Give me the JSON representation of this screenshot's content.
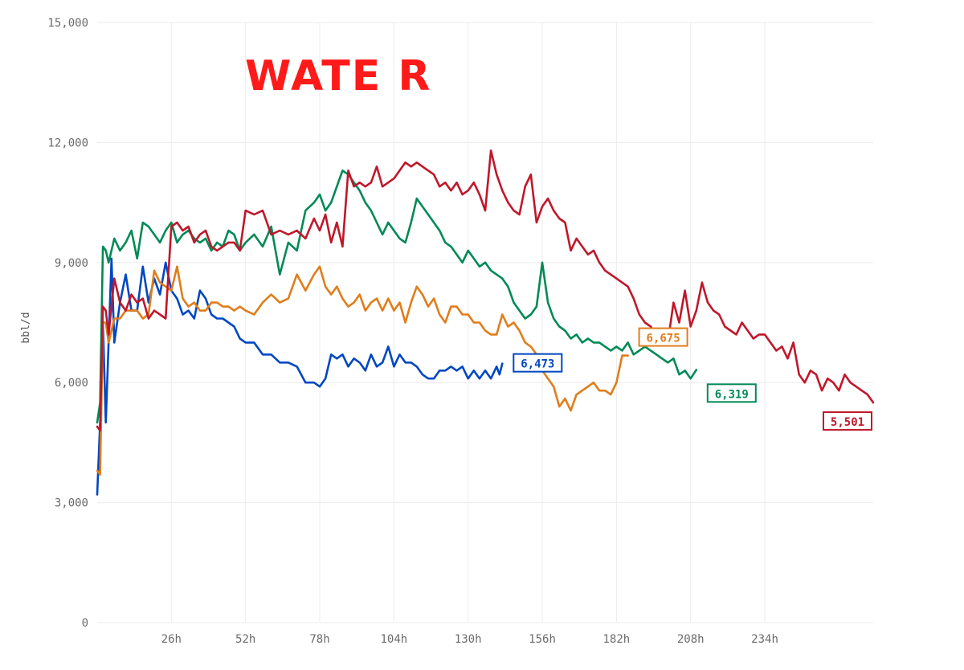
{
  "chart_data": {
    "type": "line",
    "title": "WATE R",
    "xlabel": "",
    "ylabel": "bbl/d",
    "ylim": [
      0,
      15000
    ],
    "xlim": [
      0,
      272
    ],
    "yticks": [
      0,
      3000,
      6000,
      9000,
      12000,
      15000
    ],
    "ytick_labels": [
      "0",
      "3,000",
      "6,000",
      "9,000",
      "12,000",
      "15,000"
    ],
    "xticks": [
      26,
      52,
      78,
      104,
      130,
      156,
      182,
      208,
      234
    ],
    "xtick_labels": [
      "26h",
      "52h",
      "78h",
      "104h",
      "130h",
      "156h",
      "182h",
      "208h",
      "234h"
    ],
    "grid": true,
    "legend": "none",
    "series": [
      {
        "color": "#0047c2",
        "end_label": "6,473",
        "x": [
          0,
          1,
          2,
          3,
          4,
          5,
          6,
          8,
          10,
          12,
          14,
          16,
          18,
          20,
          22,
          24,
          26,
          28,
          30,
          32,
          34,
          36,
          38,
          40,
          42,
          44,
          46,
          48,
          50,
          52,
          55,
          58,
          61,
          64,
          67,
          70,
          73,
          76,
          78,
          80,
          82,
          84,
          86,
          88,
          90,
          92,
          94,
          96,
          98,
          100,
          102,
          104,
          106,
          108,
          110,
          112,
          114,
          116,
          118,
          120,
          122,
          124,
          126,
          128,
          130,
          132,
          134,
          136,
          138,
          140,
          141,
          142
        ],
        "values": [
          3200,
          5000,
          7500,
          5000,
          7000,
          9100,
          7000,
          8000,
          8700,
          7800,
          7800,
          8900,
          8000,
          8600,
          8200,
          9000,
          8300,
          8100,
          7700,
          7800,
          7600,
          8300,
          8100,
          7700,
          7600,
          7600,
          7500,
          7400,
          7100,
          7000,
          7000,
          6700,
          6700,
          6500,
          6500,
          6400,
          6000,
          6000,
          5900,
          6100,
          6700,
          6600,
          6700,
          6400,
          6600,
          6500,
          6300,
          6700,
          6400,
          6500,
          6900,
          6400,
          6700,
          6500,
          6500,
          6400,
          6200,
          6100,
          6100,
          6300,
          6300,
          6400,
          6300,
          6400,
          6100,
          6300,
          6100,
          6300,
          6100,
          6400,
          6200,
          6473
        ]
      },
      {
        "color": "#e07d1b",
        "end_label": "6,675",
        "x": [
          0,
          1,
          2,
          3,
          4,
          6,
          8,
          10,
          12,
          14,
          16,
          18,
          20,
          22,
          24,
          26,
          28,
          30,
          32,
          34,
          36,
          38,
          40,
          42,
          44,
          46,
          48,
          50,
          52,
          55,
          58,
          61,
          64,
          67,
          70,
          73,
          76,
          78,
          80,
          82,
          84,
          86,
          88,
          90,
          92,
          94,
          96,
          98,
          100,
          102,
          104,
          106,
          108,
          110,
          112,
          114,
          116,
          118,
          120,
          122,
          124,
          126,
          128,
          130,
          132,
          134,
          136,
          138,
          140,
          142,
          144,
          146,
          148,
          150,
          152,
          154,
          156,
          158,
          160,
          162,
          164,
          166,
          168,
          170,
          172,
          174,
          176,
          178,
          180,
          182,
          184,
          186
        ],
        "values": [
          3800,
          3700,
          7500,
          7500,
          7000,
          7600,
          7600,
          7800,
          7800,
          7800,
          7600,
          7700,
          8800,
          8500,
          8400,
          8300,
          8900,
          8100,
          7900,
          8000,
          7800,
          7800,
          8000,
          8000,
          7900,
          7900,
          7800,
          7900,
          7800,
          7700,
          8000,
          8200,
          8000,
          8100,
          8700,
          8300,
          8700,
          8900,
          8400,
          8200,
          8400,
          8100,
          7900,
          8000,
          8200,
          7800,
          8000,
          8100,
          7800,
          8100,
          7800,
          8000,
          7500,
          8000,
          8400,
          8200,
          7900,
          8100,
          7700,
          7500,
          7900,
          7900,
          7700,
          7700,
          7500,
          7500,
          7300,
          7200,
          7200,
          7700,
          7400,
          7500,
          7300,
          7000,
          6900,
          6700,
          6300,
          6100,
          5900,
          5400,
          5600,
          5300,
          5700,
          5800,
          5900,
          6000,
          5800,
          5800,
          5700,
          6000,
          6675,
          6675
        ]
      },
      {
        "color": "#008a56",
        "end_label": "6,319",
        "x": [
          0,
          1,
          2,
          3,
          4,
          6,
          8,
          10,
          12,
          14,
          16,
          18,
          20,
          22,
          24,
          26,
          28,
          30,
          32,
          34,
          36,
          38,
          40,
          42,
          44,
          46,
          48,
          50,
          52,
          55,
          58,
          61,
          64,
          67,
          70,
          73,
          76,
          78,
          80,
          82,
          84,
          86,
          88,
          90,
          92,
          94,
          96,
          98,
          100,
          102,
          104,
          106,
          108,
          110,
          112,
          114,
          116,
          118,
          120,
          122,
          124,
          126,
          128,
          130,
          132,
          134,
          136,
          138,
          140,
          142,
          144,
          146,
          148,
          150,
          152,
          154,
          156,
          158,
          160,
          162,
          164,
          166,
          168,
          170,
          172,
          174,
          176,
          178,
          180,
          182,
          184,
          186,
          188,
          190,
          192,
          194,
          196,
          198,
          200,
          202,
          204,
          206,
          208,
          210
        ],
        "values": [
          5000,
          5500,
          9400,
          9300,
          9000,
          9600,
          9300,
          9500,
          9800,
          9100,
          10000,
          9900,
          9700,
          9500,
          9800,
          10000,
          9500,
          9700,
          9800,
          9600,
          9500,
          9600,
          9300,
          9500,
          9400,
          9800,
          9700,
          9300,
          9500,
          9700,
          9400,
          9900,
          8700,
          9500,
          9300,
          10300,
          10500,
          10700,
          10300,
          10500,
          10900,
          11300,
          11200,
          11000,
          10800,
          10500,
          10300,
          10000,
          9700,
          10000,
          9800,
          9600,
          9500,
          10000,
          10600,
          10400,
          10200,
          10000,
          9800,
          9500,
          9400,
          9200,
          9000,
          9300,
          9100,
          8900,
          9000,
          8800,
          8700,
          8600,
          8400,
          8000,
          7800,
          7600,
          7700,
          7900,
          9000,
          8000,
          7600,
          7400,
          7300,
          7100,
          7200,
          7000,
          7100,
          7000,
          7000,
          6900,
          6800,
          6900,
          6800,
          7000,
          6700,
          6800,
          6900,
          6800,
          6700,
          6600,
          6500,
          6600,
          6200,
          6300,
          6100,
          6319
        ]
      },
      {
        "color": "#c0172a",
        "end_label": "5,501",
        "x": [
          0,
          1,
          2,
          3,
          4,
          6,
          8,
          10,
          12,
          14,
          16,
          18,
          20,
          22,
          24,
          26,
          28,
          30,
          32,
          34,
          36,
          38,
          40,
          42,
          44,
          46,
          48,
          50,
          52,
          55,
          58,
          61,
          64,
          67,
          70,
          73,
          76,
          78,
          80,
          82,
          84,
          86,
          88,
          90,
          92,
          94,
          96,
          98,
          100,
          102,
          104,
          106,
          108,
          110,
          112,
          114,
          116,
          118,
          120,
          122,
          124,
          126,
          128,
          130,
          132,
          134,
          136,
          138,
          140,
          142,
          144,
          146,
          148,
          150,
          152,
          154,
          156,
          158,
          160,
          162,
          164,
          166,
          168,
          170,
          172,
          174,
          176,
          178,
          180,
          182,
          184,
          186,
          188,
          190,
          192,
          194,
          196,
          198,
          200,
          202,
          204,
          206,
          208,
          210,
          212,
          214,
          216,
          218,
          220,
          222,
          224,
          226,
          228,
          230,
          232,
          234,
          236,
          238,
          240,
          242,
          244,
          246,
          248,
          250,
          252,
          254,
          256,
          258,
          260,
          262,
          264,
          266,
          268,
          270,
          272
        ],
        "values": [
          4900,
          4800,
          7900,
          7800,
          7200,
          8600,
          8000,
          7800,
          8200,
          8000,
          8100,
          7600,
          7800,
          7700,
          7600,
          9900,
          10000,
          9800,
          9900,
          9500,
          9700,
          9800,
          9400,
          9300,
          9400,
          9500,
          9500,
          9300,
          10300,
          10200,
          10300,
          9700,
          9800,
          9700,
          9800,
          9600,
          10100,
          9800,
          10200,
          9500,
          10000,
          9400,
          11300,
          10900,
          11000,
          10900,
          11000,
          11400,
          10900,
          11000,
          11100,
          11300,
          11500,
          11400,
          11500,
          11400,
          11300,
          11200,
          10900,
          11000,
          10800,
          11000,
          10700,
          10800,
          11000,
          10700,
          10300,
          11800,
          11200,
          10800,
          10500,
          10300,
          10200,
          10900,
          11200,
          10000,
          10400,
          10600,
          10300,
          10100,
          10000,
          9300,
          9600,
          9400,
          9200,
          9300,
          9000,
          8800,
          8700,
          8600,
          8500,
          8400,
          8100,
          7700,
          7500,
          7400,
          7200,
          7100,
          7000,
          8000,
          7500,
          8300,
          7400,
          7800,
          8500,
          8000,
          7800,
          7700,
          7400,
          7300,
          7200,
          7500,
          7300,
          7100,
          7200,
          7200,
          7000,
          6800,
          6900,
          6600,
          7000,
          6200,
          6000,
          6300,
          6200,
          5800,
          6100,
          6000,
          5800,
          6200,
          6000,
          5900,
          5800,
          5700,
          5501
        ]
      }
    ]
  }
}
